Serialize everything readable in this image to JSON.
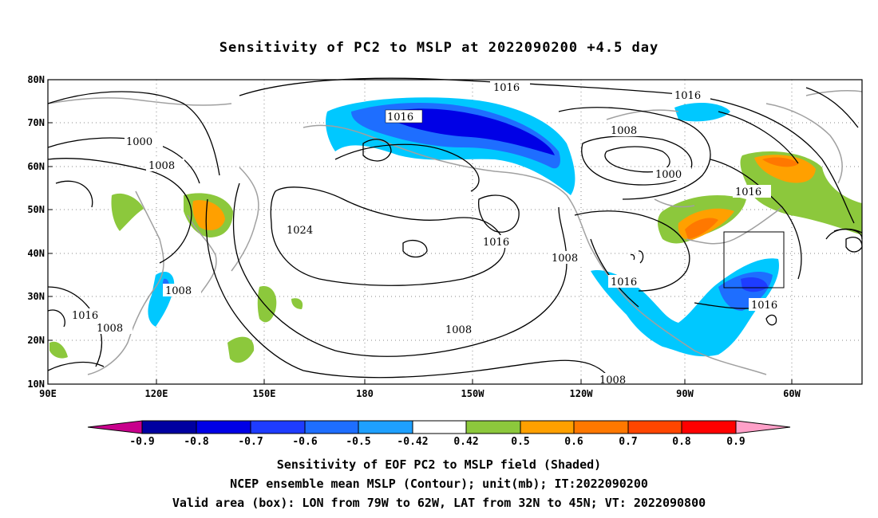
{
  "title": "Sensitivity of PC2 to MSLP at 2022090200 +4.5 day",
  "map": {
    "lon_range": [
      "90E",
      "60W minus ~40"
    ],
    "x_ticks": [
      "90E",
      "120E",
      "150E",
      "180",
      "150W",
      "120W",
      "90W",
      "60W"
    ],
    "y_ticks": [
      "10N",
      "20N",
      "30N",
      "40N",
      "50N",
      "60N",
      "70N",
      "80N"
    ],
    "contour_labels": [
      "1016",
      "1016",
      "1016",
      "1000",
      "1008",
      "1008",
      "1000",
      "1016",
      "1024",
      "1016",
      "1008",
      "1008",
      "1016",
      "1008",
      "1016",
      "1008",
      "1016",
      "1008"
    ],
    "valid_box": {
      "lon_from": "79W",
      "lon_to": "62W",
      "lat_from": "32N",
      "lat_to": "45N"
    },
    "grid": true
  },
  "colorbar": {
    "labels": [
      "-0.9",
      "-0.8",
      "-0.7",
      "-0.6",
      "-0.5",
      "-0.42",
      "0.42",
      "0.5",
      "0.6",
      "0.7",
      "0.8",
      "0.9"
    ],
    "colors": [
      "#c8008c",
      "#0000a0",
      "#0000e6",
      "#1e3cff",
      "#1e6eff",
      "#1ea0ff",
      "#00c8ff",
      "#ffffff",
      "#8cc83c",
      "#ffa000",
      "#ff7800",
      "#ff4600",
      "#ff0000",
      "#ffa0c8"
    ]
  },
  "captions": {
    "line1": "Sensitivity of EOF PC2 to MSLP field (Shaded)",
    "line2": "NCEP ensemble mean MSLP (Contour); unit(mb); IT:2022090200",
    "line3": "Valid area (box): LON from 79W to 62W, LAT from 32N to 45N; VT: 2022090800"
  }
}
